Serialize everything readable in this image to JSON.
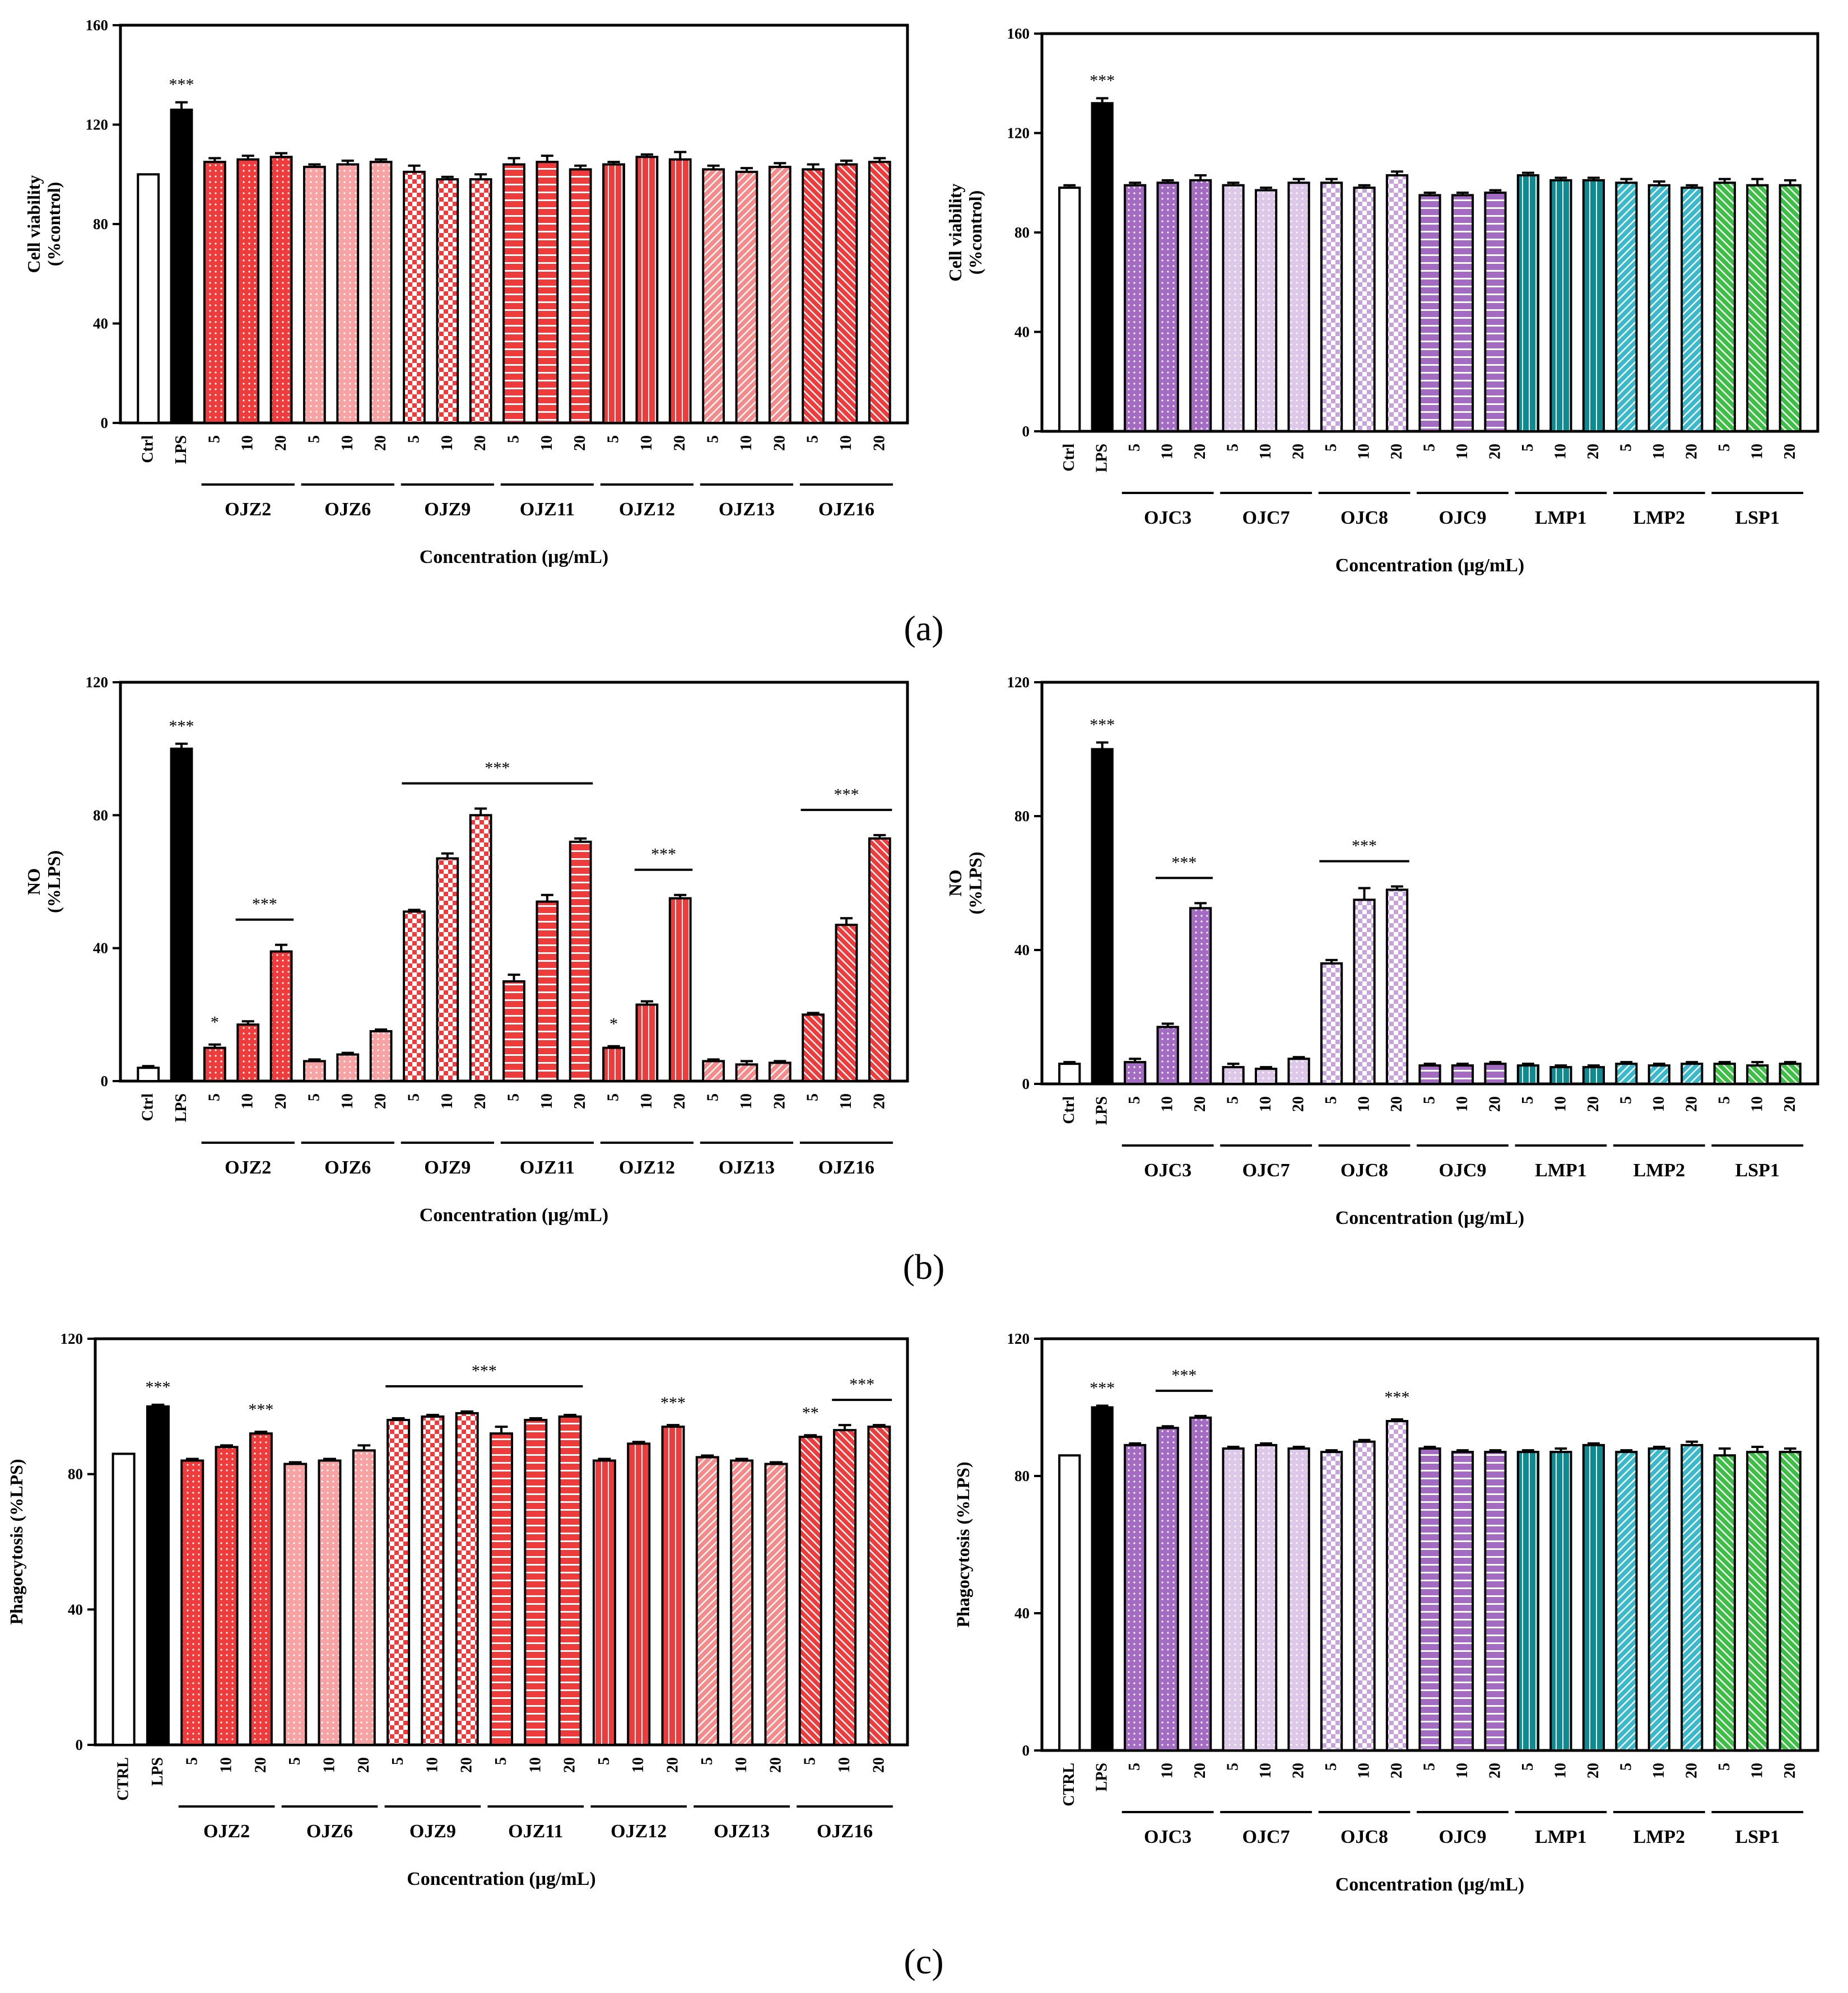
{
  "figure": {
    "panel_labels": [
      "(a)",
      "(b)",
      "(c)"
    ]
  },
  "chart_data": [
    {
      "type": "bar",
      "title": "",
      "panel": "a",
      "side": "left",
      "ylabel_lines": [
        "Cell viability",
        "(%control)"
      ],
      "xlabel": "Concentration (μg/mL)",
      "ylim": [
        0,
        160
      ],
      "yticks": [
        0,
        40,
        80,
        120,
        160
      ],
      "controls": [
        {
          "label": "Ctrl",
          "value": 100,
          "error": 0,
          "fill": "white",
          "sig": ""
        },
        {
          "label": "LPS",
          "value": 126,
          "error": 3,
          "fill": "black",
          "sig": "***"
        }
      ],
      "conc_labels": [
        "5",
        "10",
        "20"
      ],
      "groups": [
        {
          "name": "OJZ2",
          "color": "#ee3b3b",
          "pattern": "dots",
          "values": [
            105,
            106,
            107
          ],
          "errors": [
            1.5,
            1.5,
            1.5
          ]
        },
        {
          "name": "OJZ6",
          "color": "#f7a3a3",
          "pattern": "dots",
          "values": [
            103,
            104,
            105
          ],
          "errors": [
            1,
            1.5,
            1
          ]
        },
        {
          "name": "OJZ9",
          "color": "#ee3b3b",
          "pattern": "checks",
          "values": [
            101,
            98,
            98
          ],
          "errors": [
            2.5,
            1,
            2
          ]
        },
        {
          "name": "OJZ11",
          "color": "#ee3b3b",
          "pattern": "hlines",
          "values": [
            104,
            105,
            102
          ],
          "errors": [
            2.5,
            2.5,
            1.5
          ]
        },
        {
          "name": "OJZ12",
          "color": "#ee3b3b",
          "pattern": "vlines",
          "values": [
            104,
            107,
            106
          ],
          "errors": [
            1,
            1,
            3
          ]
        },
        {
          "name": "OJZ13",
          "color": "#f58a8a",
          "pattern": "diag",
          "values": [
            102,
            101,
            103
          ],
          "errors": [
            1.5,
            1.5,
            1.5
          ]
        },
        {
          "name": "OJZ16",
          "color": "#ee3b3b",
          "pattern": "diag2",
          "values": [
            102,
            104,
            105
          ],
          "errors": [
            2,
            1.5,
            1.5
          ]
        }
      ],
      "group_sig": []
    },
    {
      "type": "bar",
      "title": "",
      "panel": "a",
      "side": "right",
      "ylabel_lines": [
        "Cell viability",
        "(%control)"
      ],
      "xlabel": "Concentration (μg/mL)",
      "ylim": [
        0,
        160
      ],
      "yticks": [
        0,
        40,
        80,
        120,
        160
      ],
      "controls": [
        {
          "label": "Ctrl",
          "value": 98,
          "error": 1,
          "fill": "white",
          "sig": ""
        },
        {
          "label": "LPS",
          "value": 132,
          "error": 2,
          "fill": "black",
          "sig": "***"
        }
      ],
      "conc_labels": [
        "5",
        "10",
        "20"
      ],
      "groups": [
        {
          "name": "OJC3",
          "color": "#a46bc2",
          "pattern": "dots",
          "values": [
            99,
            100,
            101
          ],
          "errors": [
            1,
            1,
            2
          ]
        },
        {
          "name": "OJC7",
          "color": "#ddc8ea",
          "pattern": "dots",
          "values": [
            99,
            97,
            100
          ],
          "errors": [
            1,
            1,
            1.5
          ]
        },
        {
          "name": "OJC8",
          "color": "#c7a3dc",
          "pattern": "checks",
          "values": [
            100,
            98,
            103
          ],
          "errors": [
            1.5,
            1,
            1.5
          ]
        },
        {
          "name": "OJC9",
          "color": "#a46bc2",
          "pattern": "hlines",
          "values": [
            95,
            95,
            96
          ],
          "errors": [
            1,
            1,
            1
          ]
        },
        {
          "name": "LMP1",
          "color": "#0e8a91",
          "pattern": "vlines",
          "values": [
            103,
            101,
            101
          ],
          "errors": [
            1,
            1,
            1
          ]
        },
        {
          "name": "LMP2",
          "color": "#39b9c9",
          "pattern": "diag",
          "values": [
            100,
            99,
            98
          ],
          "errors": [
            1.5,
            1.5,
            1
          ]
        },
        {
          "name": "LSP1",
          "color": "#3cbf44",
          "pattern": "diag2",
          "values": [
            100,
            99,
            99
          ],
          "errors": [
            1.5,
            2.5,
            2
          ]
        }
      ],
      "group_sig": []
    },
    {
      "type": "bar",
      "title": "",
      "panel": "b",
      "side": "left",
      "ylabel_lines": [
        "NO",
        "(%LPS)"
      ],
      "xlabel": "Concentration (μg/mL)",
      "ylim": [
        0,
        120
      ],
      "yticks": [
        0,
        40,
        80,
        120
      ],
      "controls": [
        {
          "label": "Ctrl",
          "value": 4,
          "error": 0.5,
          "fill": "white",
          "sig": ""
        },
        {
          "label": "LPS",
          "value": 100,
          "error": 1.5,
          "fill": "black",
          "sig": "***"
        }
      ],
      "conc_labels": [
        "5",
        "10",
        "20"
      ],
      "groups": [
        {
          "name": "OJZ2",
          "color": "#ee3b3b",
          "pattern": "dots",
          "values": [
            10,
            17,
            39
          ],
          "errors": [
            1,
            1,
            2
          ]
        },
        {
          "name": "OJZ6",
          "color": "#f7a3a3",
          "pattern": "dots",
          "values": [
            6,
            8,
            15
          ],
          "errors": [
            0.5,
            0.5,
            0.5
          ]
        },
        {
          "name": "OJZ9",
          "color": "#ee3b3b",
          "pattern": "checks",
          "values": [
            51,
            67,
            80
          ],
          "errors": [
            0.5,
            1.5,
            2
          ]
        },
        {
          "name": "OJZ11",
          "color": "#ee3b3b",
          "pattern": "hlines",
          "values": [
            30,
            54,
            72
          ],
          "errors": [
            2,
            2,
            1
          ]
        },
        {
          "name": "OJZ12",
          "color": "#ee3b3b",
          "pattern": "vlines",
          "values": [
            10,
            23,
            55
          ],
          "errors": [
            0.5,
            1,
            1
          ]
        },
        {
          "name": "OJZ13",
          "color": "#f58a8a",
          "pattern": "diag",
          "values": [
            6,
            5,
            5.5
          ],
          "errors": [
            0.5,
            1,
            0.5
          ]
        },
        {
          "name": "OJZ16",
          "color": "#ee3b3b",
          "pattern": "diag2",
          "values": [
            20,
            47,
            73
          ],
          "errors": [
            0.5,
            2,
            1
          ]
        }
      ],
      "group_sig": [
        {
          "label": "*",
          "from": [
            0,
            0
          ],
          "to": [
            0,
            0
          ],
          "line": false
        },
        {
          "label": "***",
          "from": [
            0,
            1
          ],
          "to": [
            0,
            2
          ],
          "line": true
        },
        {
          "label": "***",
          "from": [
            2,
            0
          ],
          "to": [
            3,
            2
          ],
          "line": true
        },
        {
          "label": "*",
          "from": [
            4,
            0
          ],
          "to": [
            4,
            0
          ],
          "line": false
        },
        {
          "label": "***",
          "from": [
            4,
            1
          ],
          "to": [
            4,
            2
          ],
          "line": true
        },
        {
          "label": "***",
          "from": [
            6,
            0
          ],
          "to": [
            6,
            2
          ],
          "line": true
        }
      ]
    },
    {
      "type": "bar",
      "title": "",
      "panel": "b",
      "side": "right",
      "ylabel_lines": [
        "NO",
        "(%LPS)"
      ],
      "xlabel": "Concentration (μg/mL)",
      "ylim": [
        0,
        120
      ],
      "yticks": [
        0,
        40,
        80,
        120
      ],
      "controls": [
        {
          "label": "Ctrl",
          "value": 6,
          "error": 0.5,
          "fill": "white",
          "sig": ""
        },
        {
          "label": "LPS",
          "value": 100,
          "error": 2,
          "fill": "black",
          "sig": "***"
        }
      ],
      "conc_labels": [
        "5",
        "10",
        "20"
      ],
      "groups": [
        {
          "name": "OJC3",
          "color": "#a46bc2",
          "pattern": "dots",
          "values": [
            6.5,
            17,
            52.5
          ],
          "errors": [
            1,
            1,
            1.5
          ]
        },
        {
          "name": "OJC7",
          "color": "#ddc8ea",
          "pattern": "dots",
          "values": [
            5,
            4.5,
            7.5
          ],
          "errors": [
            1,
            0.5,
            0.5
          ]
        },
        {
          "name": "OJC8",
          "color": "#c7a3dc",
          "pattern": "checks",
          "values": [
            36,
            55,
            58
          ],
          "errors": [
            1,
            3.5,
            1
          ]
        },
        {
          "name": "OJC9",
          "color": "#a46bc2",
          "pattern": "hlines",
          "values": [
            5.5,
            5.5,
            6
          ],
          "errors": [
            0.5,
            0.5,
            0.5
          ]
        },
        {
          "name": "LMP1",
          "color": "#0e8a91",
          "pattern": "vlines",
          "values": [
            5.5,
            5,
            5
          ],
          "errors": [
            0.5,
            0.5,
            0.5
          ]
        },
        {
          "name": "LMP2",
          "color": "#39b9c9",
          "pattern": "diag",
          "values": [
            6,
            5.5,
            6
          ],
          "errors": [
            0.5,
            0.5,
            0.5
          ]
        },
        {
          "name": "LSP1",
          "color": "#3cbf44",
          "pattern": "diag2",
          "values": [
            6,
            5.5,
            6
          ],
          "errors": [
            0.5,
            1,
            0.5
          ]
        }
      ],
      "group_sig": [
        {
          "label": "***",
          "from": [
            0,
            1
          ],
          "to": [
            0,
            2
          ],
          "line": true
        },
        {
          "label": "***",
          "from": [
            2,
            0
          ],
          "to": [
            2,
            2
          ],
          "line": true
        }
      ]
    },
    {
      "type": "bar",
      "title": "",
      "panel": "c",
      "side": "left",
      "ylabel_lines": [
        "Phagocytosis (%LPS)"
      ],
      "xlabel": "Concentration (μg/mL)",
      "ylim": [
        0,
        120
      ],
      "yticks": [
        0,
        40,
        80,
        120
      ],
      "controls": [
        {
          "label": "CTRL",
          "value": 86,
          "error": 0,
          "fill": "white",
          "sig": ""
        },
        {
          "label": "LPS",
          "value": 100,
          "error": 0.5,
          "fill": "black",
          "sig": "***"
        }
      ],
      "conc_labels": [
        "5",
        "10",
        "20"
      ],
      "groups": [
        {
          "name": "OJZ2",
          "color": "#ee3b3b",
          "pattern": "dots",
          "values": [
            84,
            88,
            92
          ],
          "errors": [
            0.5,
            0.5,
            0.5
          ]
        },
        {
          "name": "OJZ6",
          "color": "#f7a3a3",
          "pattern": "dots",
          "values": [
            83,
            84,
            87
          ],
          "errors": [
            0.5,
            0.5,
            1.5
          ]
        },
        {
          "name": "OJZ9",
          "color": "#ee3b3b",
          "pattern": "checks",
          "values": [
            96,
            97,
            98
          ],
          "errors": [
            0.5,
            0.5,
            0.5
          ]
        },
        {
          "name": "OJZ11",
          "color": "#ee3b3b",
          "pattern": "hlines",
          "values": [
            92,
            96,
            97
          ],
          "errors": [
            2,
            0.5,
            0.5
          ]
        },
        {
          "name": "OJZ12",
          "color": "#ee3b3b",
          "pattern": "vlines",
          "values": [
            84,
            89,
            94
          ],
          "errors": [
            0.5,
            0.5,
            0.5
          ]
        },
        {
          "name": "OJZ13",
          "color": "#f58a8a",
          "pattern": "diag",
          "values": [
            85,
            84,
            83
          ],
          "errors": [
            0.5,
            0.5,
            0.5
          ]
        },
        {
          "name": "OJZ16",
          "color": "#ee3b3b",
          "pattern": "diag2",
          "values": [
            91,
            93,
            94
          ],
          "errors": [
            0.5,
            1.5,
            0.5
          ]
        }
      ],
      "group_sig": [
        {
          "label": "***",
          "from": [
            0,
            2
          ],
          "to": [
            0,
            2
          ],
          "line": false
        },
        {
          "label": "***",
          "from": [
            2,
            0
          ],
          "to": [
            3,
            2
          ],
          "line": true
        },
        {
          "label": "***",
          "from": [
            4,
            2
          ],
          "to": [
            4,
            2
          ],
          "line": false
        },
        {
          "label": "**",
          "from": [
            6,
            0
          ],
          "to": [
            6,
            0
          ],
          "line": false
        },
        {
          "label": "***",
          "from": [
            6,
            1
          ],
          "to": [
            6,
            2
          ],
          "line": true
        }
      ]
    },
    {
      "type": "bar",
      "title": "",
      "panel": "c",
      "side": "right",
      "ylabel_lines": [
        "Phagocytosis (%LPS)"
      ],
      "xlabel": "Concentration (μg/mL)",
      "ylim": [
        0,
        120
      ],
      "yticks": [
        0,
        40,
        80,
        120
      ],
      "controls": [
        {
          "label": "CTRL",
          "value": 86,
          "error": 0,
          "fill": "white",
          "sig": ""
        },
        {
          "label": "LPS",
          "value": 100,
          "error": 0.5,
          "fill": "black",
          "sig": "***"
        }
      ],
      "conc_labels": [
        "5",
        "10",
        "20"
      ],
      "groups": [
        {
          "name": "OJC3",
          "color": "#a46bc2",
          "pattern": "dots",
          "values": [
            89,
            94,
            97
          ],
          "errors": [
            0.5,
            0.5,
            0.5
          ]
        },
        {
          "name": "OJC7",
          "color": "#ddc8ea",
          "pattern": "dots",
          "values": [
            88,
            89,
            88
          ],
          "errors": [
            0.5,
            0.5,
            0.5
          ]
        },
        {
          "name": "OJC8",
          "color": "#c7a3dc",
          "pattern": "checks",
          "values": [
            87,
            90,
            96
          ],
          "errors": [
            0.5,
            0.5,
            0.5
          ]
        },
        {
          "name": "OJC9",
          "color": "#a46bc2",
          "pattern": "hlines",
          "values": [
            88,
            87,
            87
          ],
          "errors": [
            0.5,
            0.5,
            0.5
          ]
        },
        {
          "name": "LMP1",
          "color": "#0e8a91",
          "pattern": "vlines",
          "values": [
            87,
            87,
            89
          ],
          "errors": [
            0.5,
            1,
            0.5
          ]
        },
        {
          "name": "LMP2",
          "color": "#39b9c9",
          "pattern": "diag",
          "values": [
            87,
            88,
            89
          ],
          "errors": [
            0.5,
            0.5,
            1
          ]
        },
        {
          "name": "LSP1",
          "color": "#3cbf44",
          "pattern": "diag2",
          "values": [
            86,
            87,
            87
          ],
          "errors": [
            2,
            1.5,
            1
          ]
        }
      ],
      "group_sig": [
        {
          "label": "***",
          "from": [
            0,
            1
          ],
          "to": [
            0,
            2
          ],
          "line": true
        },
        {
          "label": "***",
          "from": [
            2,
            2
          ],
          "to": [
            2,
            2
          ],
          "line": false
        }
      ]
    }
  ]
}
